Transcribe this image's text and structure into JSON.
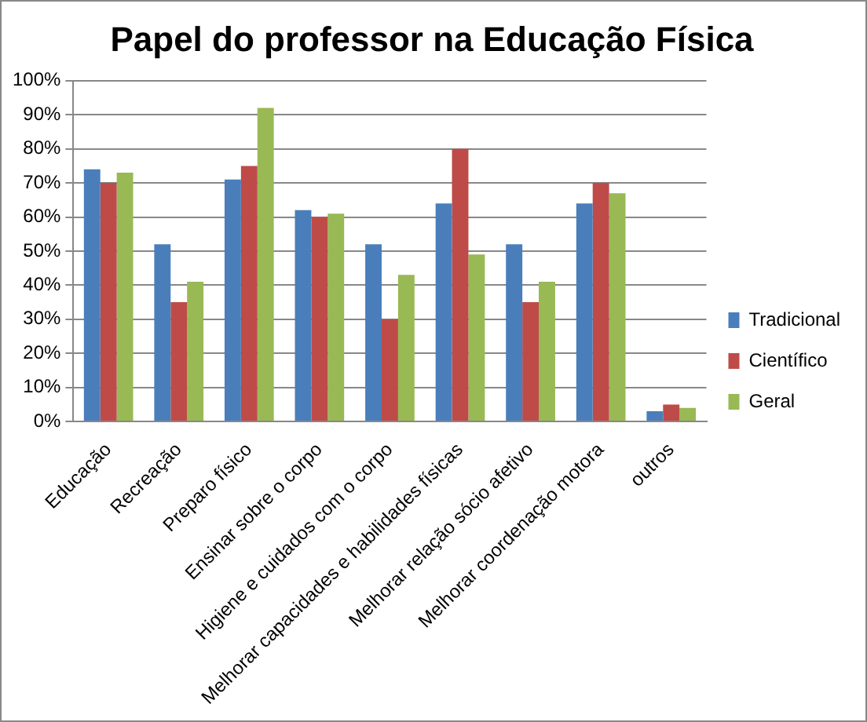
{
  "chart_data": {
    "type": "bar",
    "title": "Papel do professor na Educação Física",
    "categories": [
      "Educação",
      "Recreação",
      "Preparo físico",
      "Ensinar sobre o corpo",
      "Higiene e cuidados com o corpo",
      "Melhorar capacidades e habilidades físicas",
      "Melhorar relação sócio afetivo",
      "Melhorar coordenação motora",
      "outros"
    ],
    "series": [
      {
        "name": "Tradicional",
        "color": "#4a7ebb",
        "values": [
          74,
          52,
          71,
          62,
          52,
          64,
          52,
          64,
          3
        ]
      },
      {
        "name": "Científico",
        "color": "#be4b48",
        "values": [
          70,
          35,
          75,
          60,
          30,
          80,
          35,
          70,
          5
        ]
      },
      {
        "name": "Geral",
        "color": "#98b954",
        "values": [
          73,
          41,
          92,
          61,
          43,
          49,
          41,
          67,
          4
        ]
      }
    ],
    "ylim": [
      0,
      100
    ],
    "yticks": [
      {
        "value": 0,
        "label": "0%"
      },
      {
        "value": 10,
        "label": "10%"
      },
      {
        "value": 20,
        "label": "20%"
      },
      {
        "value": 30,
        "label": "30%"
      },
      {
        "value": 40,
        "label": "40%"
      },
      {
        "value": 50,
        "label": "50%"
      },
      {
        "value": 60,
        "label": "60%"
      },
      {
        "value": 70,
        "label": "70%"
      },
      {
        "value": 80,
        "label": "80%"
      },
      {
        "value": 90,
        "label": "90%"
      },
      {
        "value": 100,
        "label": "100%"
      }
    ],
    "grid": "y",
    "legend": "right"
  }
}
